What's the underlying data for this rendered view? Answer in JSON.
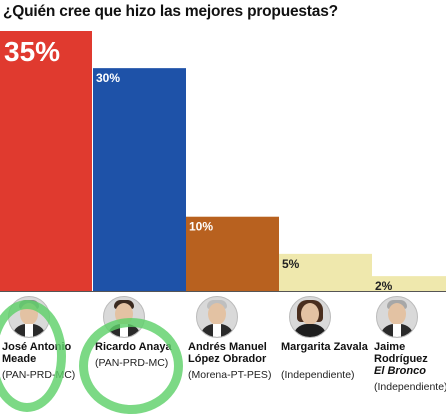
{
  "title": "¿Quién cree que hizo las mejores propuestas?",
  "chart_data": {
    "type": "bar",
    "categories": [
      "José Antonio Meade",
      "Ricardo Anaya",
      "Andrés Manuel López Obrador",
      "Margarita Zavala",
      "Jaime Rodríguez El Bronco"
    ],
    "values": [
      35,
      30,
      10,
      5,
      2
    ],
    "value_labels": [
      "35%",
      "30%",
      "10%",
      "5%",
      "2%"
    ],
    "colors": [
      "#e03a2f",
      "#1e52a8",
      "#b8611f",
      "#efe8ad",
      "#efe8ad"
    ],
    "ylim": [
      0,
      35
    ],
    "grid": false
  },
  "candidates": [
    {
      "name": "José Antonio Meade",
      "party": "(PAN-PRD-MC)"
    },
    {
      "name": "Ricardo Anaya",
      "party": "(PAN-PRD-MC)"
    },
    {
      "name": "Andrés Manuel López Obrador",
      "party": "(Morena-PT-PES)"
    },
    {
      "name": "Margarita Zavala",
      "party": "(Independiente)"
    },
    {
      "name": "Jaime Rodríguez",
      "name_italic": "El Bronco",
      "party": "(Independiente)"
    }
  ],
  "highlight_color": "#5fd16a"
}
